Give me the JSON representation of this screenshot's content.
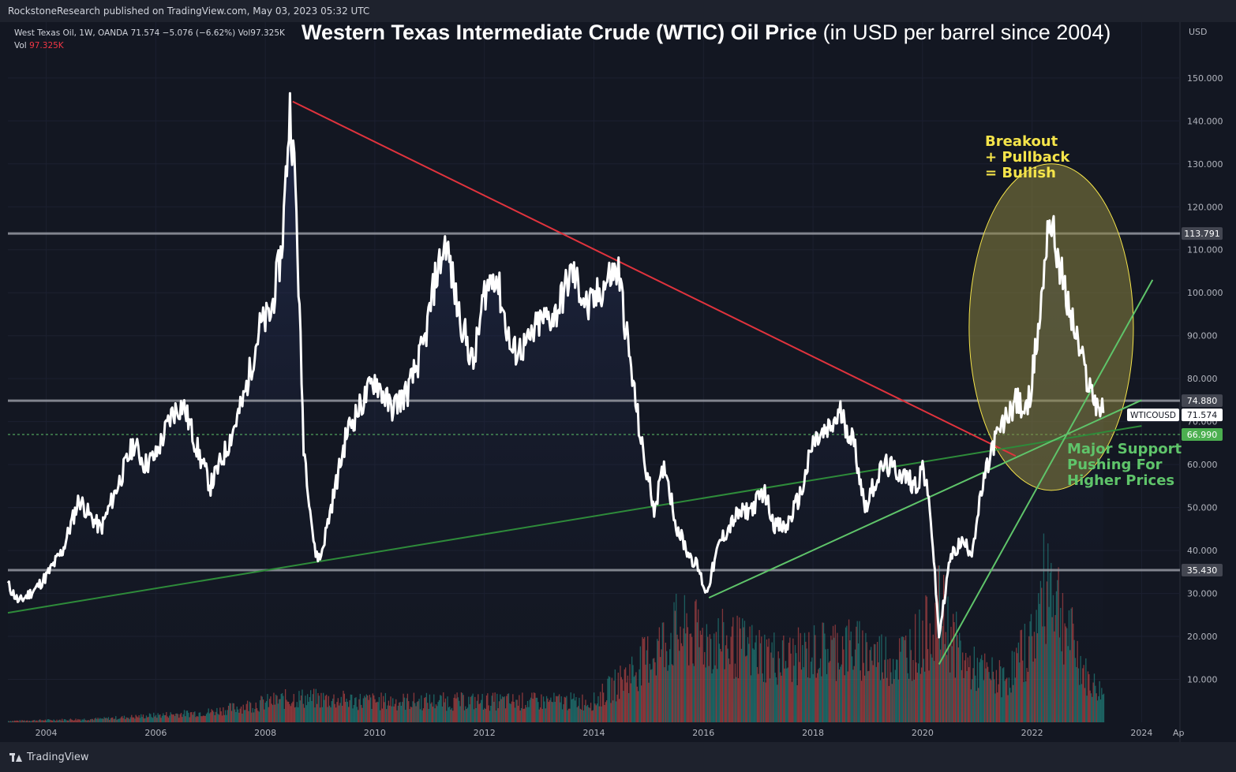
{
  "header": {
    "published": "RockstoneResearch published on TradingView.com, May 03, 2023 05:32 UTC"
  },
  "legend": {
    "symbol": "West Texas Oil, 1W, OANDA",
    "last": "71.574",
    "change": "−5.076 (−6.62%)",
    "vol_label": "Vol",
    "vol_value": "97.325K",
    "vol_line_label": "Vol",
    "vol_line_value": "97.325K"
  },
  "title": {
    "bold": "Western Texas Intermediate Crude (WTIC) Oil Price",
    "normal": " (in USD per barrel since 2004)"
  },
  "annotations": {
    "breakout": [
      "Breakout",
      "+ Pullback",
      "= Bullish"
    ],
    "support": [
      "Major Support",
      "Pushing For",
      "Higher Prices"
    ]
  },
  "footer": {
    "brand": "TradingView",
    "icon": "tradingview-logo-icon"
  },
  "colors": {
    "background": "#131722",
    "price_line": "#ffffff",
    "red_trend": "#e0333d",
    "green_trend": "#5fc46a",
    "dark_green_trend": "#2e8b3a",
    "horizontal_level": "#9598a1",
    "ellipse_fill": "#8a8440",
    "ellipse_stroke": "#f5e44a",
    "volume_up": "#26a69a",
    "volume_down": "#ef5350"
  },
  "chart_data": {
    "type": "line",
    "x_unit": "year",
    "currency_label": "USD",
    "ylim": [
      0,
      163
    ],
    "xlim": [
      2003.3,
      2024.7
    ],
    "y_ticks": [
      10,
      20,
      30,
      40,
      50,
      60,
      70,
      80,
      90,
      100,
      110,
      120,
      130,
      140,
      150
    ],
    "y_tick_labels": [
      "10.000",
      "20.000",
      "30.000",
      "40.000",
      "50.000",
      "60.000",
      "70.000",
      "80.000",
      "90.000",
      "100.000",
      "110.000",
      "120.000",
      "130.000",
      "140.000",
      "150.000"
    ],
    "x_ticks": [
      2004,
      2006,
      2008,
      2010,
      2012,
      2014,
      2016,
      2018,
      2020,
      2022,
      2024
    ],
    "x_tick_labels": [
      "2004",
      "2006",
      "2008",
      "2010",
      "2012",
      "2014",
      "2016",
      "2018",
      "2020",
      "2022",
      "2024"
    ],
    "x_edge_label": "Ap",
    "series": [
      {
        "x": [
          2003.3,
          2003.5,
          2003.8,
          2004.0,
          2004.3,
          2004.6,
          2004.8,
          2005.0,
          2005.3,
          2005.6,
          2005.8,
          2006.0,
          2006.3,
          2006.5,
          2006.8,
          2007.0,
          2007.3,
          2007.6,
          2007.9,
          2008.1,
          2008.3,
          2008.45,
          2008.55,
          2008.7,
          2008.9,
          2009.0,
          2009.2,
          2009.5,
          2009.8,
          2010.0,
          2010.3,
          2010.6,
          2010.9,
          2011.1,
          2011.3,
          2011.5,
          2011.8,
          2012.0,
          2012.2,
          2012.5,
          2012.8,
          2013.0,
          2013.3,
          2013.6,
          2013.9,
          2014.1,
          2014.3,
          2014.45,
          2014.7,
          2014.9,
          2015.1,
          2015.3,
          2015.5,
          2015.7,
          2015.9,
          2016.05,
          2016.3,
          2016.6,
          2016.9,
          2017.1,
          2017.3,
          2017.5,
          2017.8,
          2018.0,
          2018.3,
          2018.5,
          2018.75,
          2018.95,
          2019.1,
          2019.3,
          2019.6,
          2019.9,
          2020.0,
          2020.15,
          2020.3,
          2020.5,
          2020.7,
          2020.9,
          2021.1,
          2021.3,
          2021.5,
          2021.7,
          2021.9,
          2022.0,
          2022.15,
          2022.3,
          2022.45,
          2022.6,
          2022.8,
          2023.0,
          2023.15,
          2023.3
        ],
        "values": [
          32,
          28,
          31,
          34,
          40,
          52,
          48,
          45,
          55,
          65,
          60,
          62,
          72,
          74,
          62,
          55,
          64,
          75,
          92,
          95,
          110,
          143,
          125,
          65,
          40,
          38,
          50,
          68,
          75,
          80,
          73,
          77,
          88,
          103,
          112,
          97,
          83,
          100,
          105,
          86,
          88,
          93,
          95,
          105,
          96,
          100,
          104,
          105,
          80,
          62,
          50,
          60,
          46,
          40,
          36,
          30,
          42,
          48,
          50,
          54,
          46,
          45,
          54,
          65,
          68,
          72,
          65,
          50,
          55,
          60,
          58,
          55,
          60,
          48,
          20,
          38,
          42,
          40,
          55,
          65,
          70,
          75,
          72,
          80,
          95,
          118,
          110,
          100,
          90,
          80,
          75,
          72
        ]
      },
      {
        "name": "Vol",
        "x": [
          2003.3,
          2005.0,
          2007.0,
          2008.5,
          2010.0,
          2012.0,
          2014.0,
          2014.8,
          2015.5,
          2016.5,
          2017.5,
          2018.5,
          2019.5,
          2020.0,
          2020.3,
          2020.8,
          2021.5,
          2022.0,
          2022.3,
          2022.6,
          2023.0,
          2023.3
        ],
        "values": [
          0.2,
          0.5,
          1.5,
          3.5,
          3,
          3,
          3,
          8,
          13,
          11,
          9,
          11,
          9,
          12,
          16,
          8,
          6,
          12,
          22,
          14,
          6,
          4
        ]
      }
    ],
    "levels": [
      {
        "value": 113.791,
        "label": "113.791"
      },
      {
        "value": 74.88,
        "label": "74.880"
      },
      {
        "value": 35.43,
        "label": "35.430"
      }
    ],
    "dashed_level": {
      "value": 66.99,
      "label": "66.990"
    },
    "last_price": {
      "symbol": "WTICOUSD",
      "value": 71.574,
      "label": "71.574"
    },
    "trendlines": [
      {
        "name": "red-downtrend",
        "from": [
          2008.5,
          144.5
        ],
        "to": [
          2021.7,
          62
        ]
      },
      {
        "name": "long-green-support",
        "from": [
          2003.3,
          25.5
        ],
        "to": [
          2024.0,
          69
        ]
      },
      {
        "name": "green-uptrend-2016",
        "from": [
          2016.1,
          29
        ],
        "to": [
          2024.0,
          75
        ]
      },
      {
        "name": "green-uptrend-2020",
        "from": [
          2020.3,
          13.5
        ],
        "to": [
          2024.2,
          103
        ]
      }
    ],
    "highlight_ellipse": {
      "cx": 2022.35,
      "cy": 92,
      "rx_years": 1.5,
      "ry_units": 38
    }
  }
}
